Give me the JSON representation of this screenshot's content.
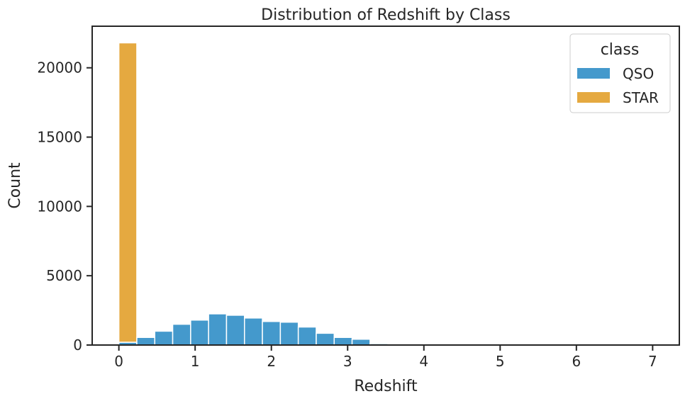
{
  "chart_data": {
    "type": "bar",
    "title": "Distribution of Redshift by Class",
    "xlabel": "Redshift",
    "ylabel": "Count",
    "xlim": [
      -0.35,
      7.35
    ],
    "ylim": [
      0,
      23000
    ],
    "x_ticks": [
      0,
      1,
      2,
      3,
      4,
      5,
      6,
      7
    ],
    "y_ticks": [
      0,
      5000,
      10000,
      15000,
      20000
    ],
    "bin_width": 0.2353,
    "bin_start": 0.0,
    "stacked": true,
    "grid": false,
    "legend": {
      "title": "class",
      "position": "top-right"
    },
    "series": [
      {
        "name": "QSO",
        "color": "#4499cc",
        "values": [
          200,
          550,
          1000,
          1500,
          1800,
          2250,
          2150,
          1950,
          1700,
          1650,
          1300,
          850,
          550,
          420,
          100,
          40,
          15,
          10,
          8,
          6,
          5,
          4,
          3,
          3,
          2,
          2,
          2,
          1,
          1,
          1
        ]
      },
      {
        "name": "STAR",
        "color": "#e5a940",
        "values": [
          21600,
          0,
          0,
          0,
          0,
          0,
          0,
          0,
          0,
          0,
          0,
          0,
          0,
          0,
          0,
          0,
          0,
          0,
          0,
          0,
          0,
          0,
          0,
          0,
          0,
          0,
          0,
          0,
          0,
          0
        ]
      }
    ]
  }
}
